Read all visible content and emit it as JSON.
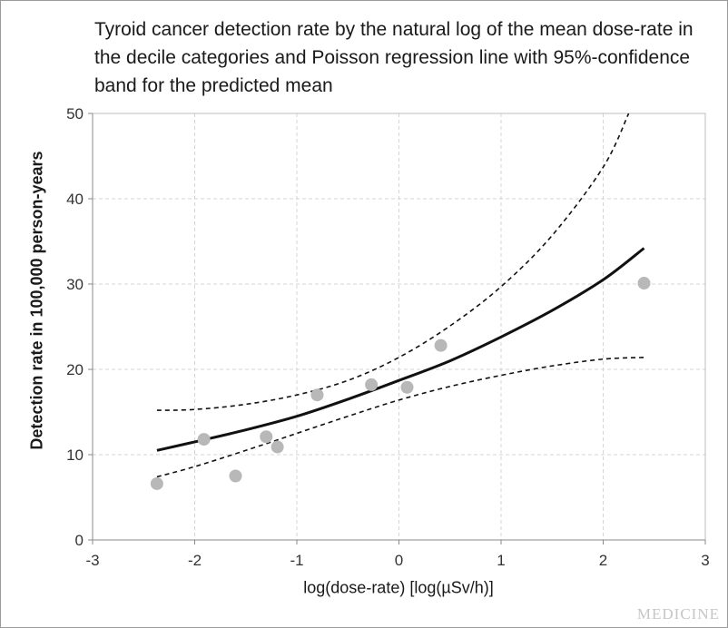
{
  "figure": {
    "title": "Tyroid cancer detection rate by the natural log of the mean dose-rate in the decile categories and Poisson regression line with 95%-confidence band for the predicted mean",
    "watermark": "MEDICINE"
  },
  "chart_data": {
    "type": "scatter",
    "title": "Tyroid cancer detection rate by the natural log of the mean dose-rate in the decile categories and Poisson regression line with 95%-confidence band for the predicted mean",
    "xlabel": "log(dose-rate)   [log(µSv/h)]",
    "ylabel": "Detection rate in 100,000 person-years",
    "xlim": [
      -3,
      3
    ],
    "ylim": [
      0,
      50
    ],
    "xticks": [
      -3,
      -2,
      -1,
      0,
      1,
      2,
      3
    ],
    "yticks": [
      0,
      10,
      20,
      30,
      40,
      50
    ],
    "grid": true,
    "points": {
      "x": [
        -2.37,
        -1.91,
        -1.6,
        -1.3,
        -1.19,
        -0.8,
        -0.27,
        0.08,
        0.41,
        2.4
      ],
      "y": [
        6.6,
        11.8,
        7.5,
        12.1,
        10.9,
        17.0,
        18.2,
        17.9,
        22.8,
        30.1
      ],
      "color": "#b8b8b8"
    },
    "lines": [
      {
        "style": "solid",
        "x": [
          -2.37,
          -2.0,
          -1.5,
          -1.0,
          -0.5,
          0.0,
          0.5,
          1.0,
          1.5,
          2.0,
          2.4
        ],
        "y": [
          10.5,
          11.5,
          12.9,
          14.5,
          16.5,
          18.7,
          21.0,
          23.8,
          26.9,
          30.5,
          34.2
        ]
      },
      {
        "style": "dashed",
        "x": [
          -2.37,
          -2.0,
          -1.5,
          -1.0,
          -0.5,
          0.0,
          0.5,
          1.0,
          1.5,
          2.0,
          2.25
        ],
        "y": [
          15.2,
          15.3,
          15.9,
          17.0,
          18.7,
          21.4,
          25.1,
          29.7,
          35.7,
          43.7,
          50.0
        ]
      },
      {
        "style": "dashed",
        "x": [
          -2.37,
          -2.0,
          -1.5,
          -1.0,
          -0.5,
          0.0,
          0.5,
          1.0,
          1.5,
          2.0,
          2.4
        ],
        "y": [
          7.4,
          8.6,
          10.5,
          12.5,
          14.5,
          16.4,
          18.0,
          19.3,
          20.4,
          21.2,
          21.4
        ]
      }
    ]
  }
}
